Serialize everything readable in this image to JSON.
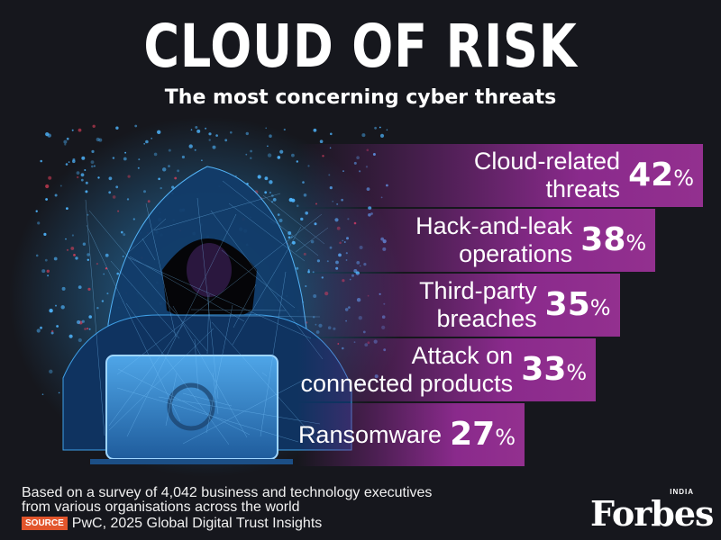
{
  "header": {
    "title": "CLOUD OF RISK",
    "subtitle": "The most concerning cyber threats"
  },
  "chart_data": {
    "type": "bar",
    "orientation": "horizontal",
    "title": "CLOUD OF RISK",
    "subtitle": "The most concerning cyber threats",
    "categories": [
      [
        "Cloud-related",
        "threats"
      ],
      [
        "Hack-and-leak",
        "operations"
      ],
      [
        "Third-party",
        "breaches"
      ],
      [
        "Attack on",
        "connected products"
      ],
      [
        "Ransomware"
      ]
    ],
    "values": [
      42,
      38,
      35,
      33,
      27
    ],
    "value_suffix": "%",
    "colors": {
      "bar": "#8a2a8c",
      "background": "#16171d"
    }
  },
  "footer": {
    "note_line1": "Based on a survey of 4,042 business and technology executives",
    "note_line2": "from various organisations across the world",
    "source_tag": "SOURCE",
    "source_text": "PwC, 2025 Global Digital Trust Insights",
    "brand_small": "INDIA",
    "brand": "Forbes"
  },
  "icons": {
    "illustration": "hooded-hacker-laptop-illustration"
  }
}
